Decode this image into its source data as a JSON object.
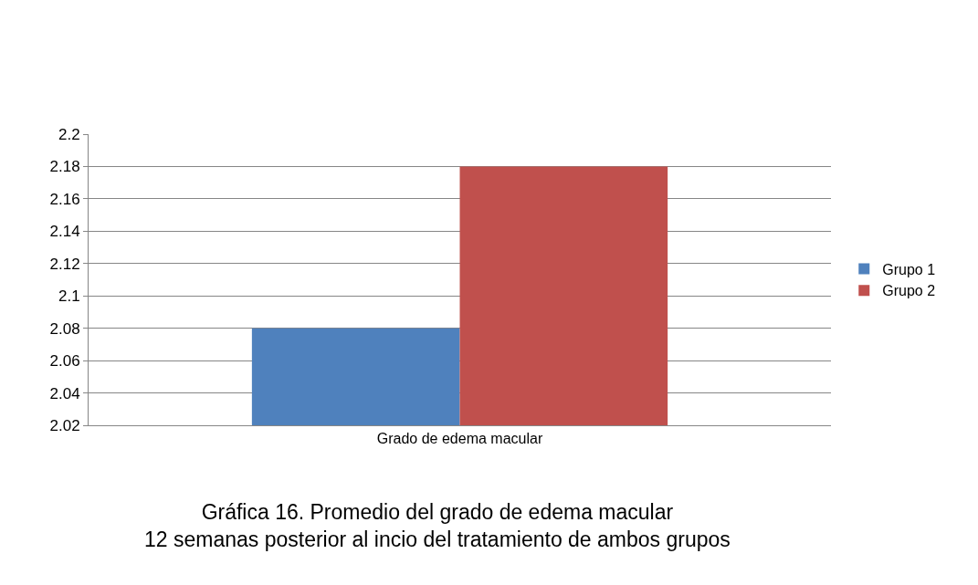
{
  "chart_data": {
    "type": "bar",
    "title": "Gráfica 16. Promedio del grado de edema macular\n12 semanas posterior al incio del tratamiento de ambos grupos",
    "categories": [
      "Grado de edema macular"
    ],
    "series": [
      {
        "name": "Grupo 1",
        "color": "#4f81bd",
        "values": [
          2.08
        ]
      },
      {
        "name": "Grupo 2",
        "color": "#c0504d",
        "values": [
          2.18
        ]
      }
    ],
    "ylim": [
      2.02,
      2.2
    ],
    "yticks": [
      2.02,
      2.04,
      2.06,
      2.08,
      2.1,
      2.12,
      2.14,
      2.16,
      2.18,
      2.2
    ],
    "grid": "y",
    "legend": "right"
  }
}
